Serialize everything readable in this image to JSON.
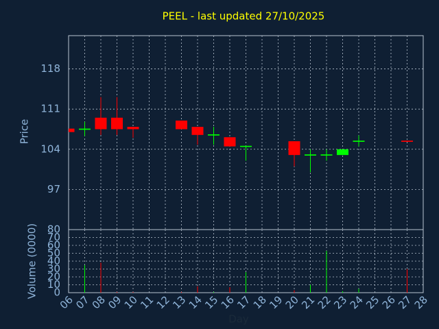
{
  "chart_data": {
    "type": "candlestick",
    "title": "PEEL - last updated 27/10/2025",
    "x_label": "Day",
    "y_label": "Price",
    "volume_label": "Volume (0000)",
    "x": [
      6,
      7,
      8,
      9,
      10,
      13,
      14,
      15,
      16,
      17,
      20,
      21,
      22,
      23,
      24,
      27
    ],
    "open": [
      107.6,
      107.4,
      109.5,
      109.5,
      107.9,
      109.0,
      107.9,
      106.4,
      106.1,
      104.4,
      105.4,
      102.9,
      102.9,
      103.0,
      105.3,
      105.5
    ],
    "high": [
      107.6,
      108.8,
      113.1,
      113.1,
      107.9,
      109.0,
      107.9,
      107.9,
      106.1,
      104.6,
      105.4,
      104.0,
      104.0,
      104.0,
      106.4,
      105.5
    ],
    "low": [
      107.0,
      106.3,
      106.5,
      106.5,
      106.0,
      107.5,
      104.8,
      104.8,
      104.5,
      102.0,
      101.0,
      100.0,
      102.0,
      103.0,
      104.5,
      105.3
    ],
    "close": [
      107.0,
      107.6,
      107.5,
      107.5,
      107.5,
      107.5,
      106.5,
      106.6,
      104.5,
      104.6,
      103.0,
      103.1,
      103.1,
      104.0,
      105.5,
      105.3
    ],
    "volume": [
      0,
      35,
      38,
      1,
      1,
      1,
      8,
      1,
      7,
      26,
      3,
      10,
      53,
      2,
      5,
      30
    ],
    "up_color": "#00ff00",
    "down_color": "#ff0000",
    "xlim": [
      6,
      28
    ],
    "xticks": [
      {
        "value": 6,
        "label": "06"
      },
      {
        "value": 7,
        "label": "07"
      },
      {
        "value": 8,
        "label": "08"
      },
      {
        "value": 9,
        "label": "09"
      },
      10,
      11,
      12,
      13,
      14,
      15,
      16,
      17,
      18,
      19,
      20,
      21,
      22,
      23,
      24,
      25,
      26,
      27,
      28
    ],
    "ylim": [
      90,
      123.8
    ],
    "yticks": [
      97,
      104,
      111,
      118
    ],
    "volume_lim": [
      0,
      80
    ],
    "volume_ticks": [
      0,
      10,
      20,
      30,
      40,
      50,
      60,
      70,
      80
    ],
    "grid": true
  }
}
